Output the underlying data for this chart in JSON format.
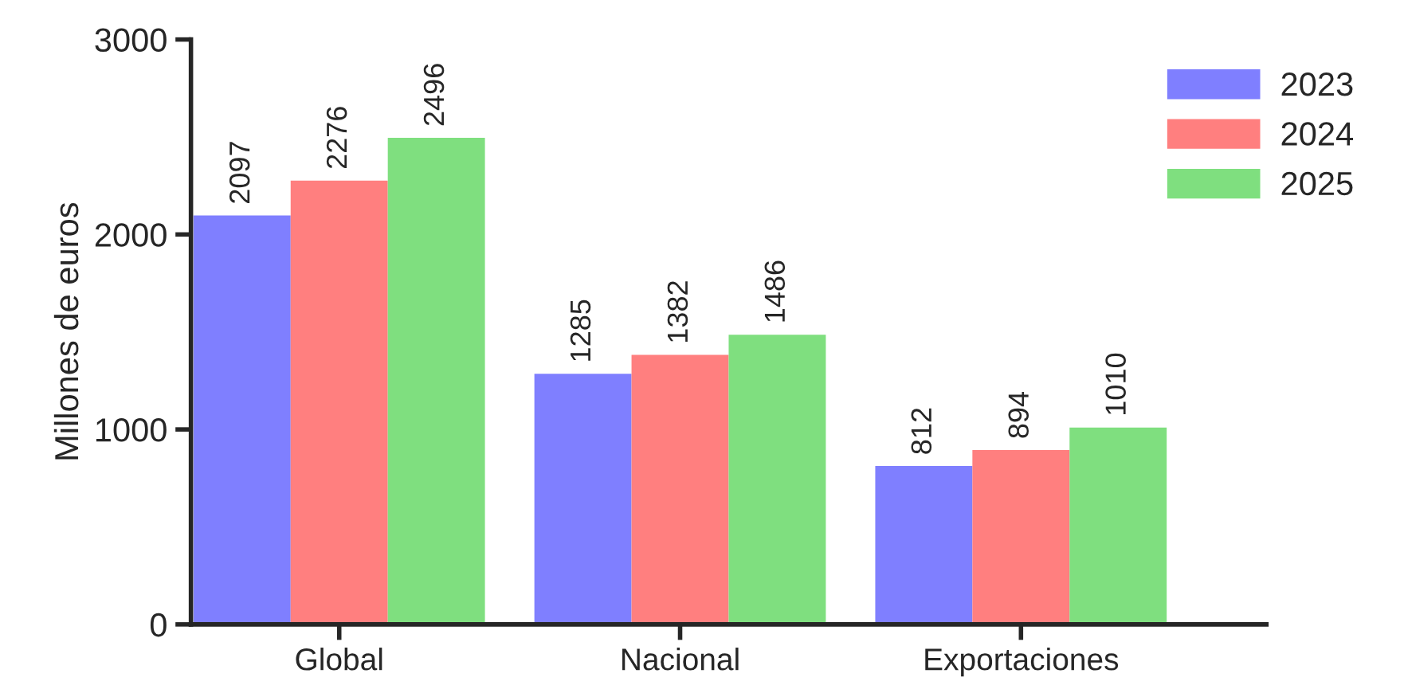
{
  "chart_data": {
    "type": "bar",
    "ylabel": "Millones de euros",
    "categories": [
      "Global",
      "Nacional",
      "Exportaciones"
    ],
    "series": [
      {
        "name": "2023",
        "color": "#7f7fff",
        "values": [
          2097,
          1285,
          812
        ]
      },
      {
        "name": "2024",
        "color": "#ff7f7f",
        "values": [
          2276,
          1382,
          894
        ]
      },
      {
        "name": "2025",
        "color": "#7fdf7f",
        "values": [
          2496,
          1486,
          1010
        ]
      }
    ],
    "ylim": [
      0,
      3000
    ],
    "yticks": [
      0,
      1000,
      2000,
      3000
    ],
    "data_labels": true,
    "legend": "top right",
    "grid": false
  }
}
